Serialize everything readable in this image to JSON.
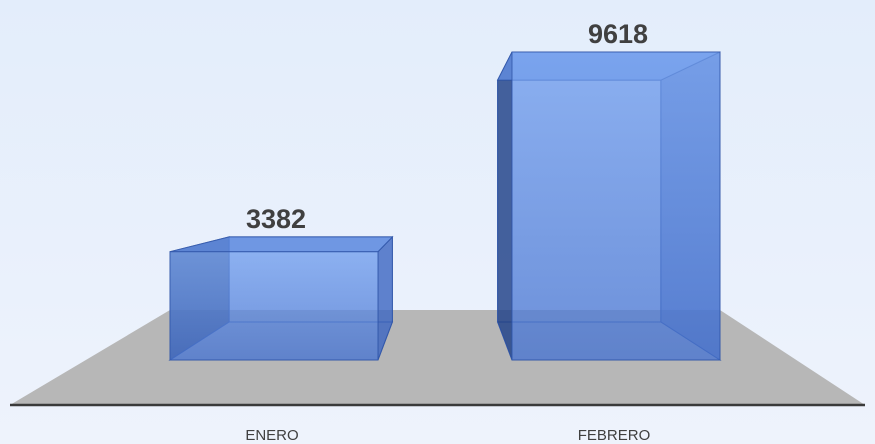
{
  "chart_data": {
    "type": "bar3d",
    "categories": [
      "ENERO",
      "FEBRERO"
    ],
    "values": [
      3382,
      9618
    ],
    "color": "#4a78d6"
  }
}
